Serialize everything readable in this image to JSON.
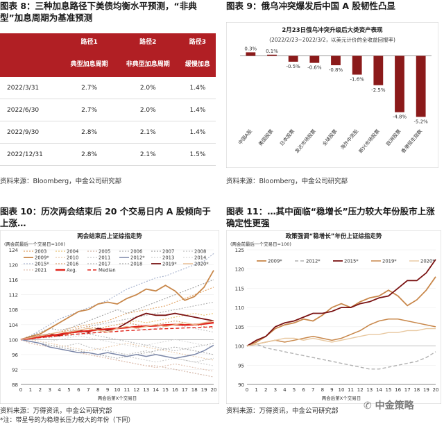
{
  "fig8": {
    "title": "图表 8：三种加息路径下美债均衡水平预测，“非典型”加息周期为基准预测",
    "headers1": [
      "",
      "路径1",
      "路径2",
      "路径3"
    ],
    "headers2": [
      "",
      "典型加息周期",
      "非典型加息周期",
      "缓慢加息"
    ],
    "rows": [
      [
        "2022/3/31",
        "2.7%",
        "2.0%",
        "1.4%"
      ],
      [
        "2022/6/30",
        "2.7%",
        "2.0%",
        "1.4%"
      ],
      [
        "2022/9/30",
        "2.8%",
        "2.1%",
        "1.4%"
      ],
      [
        "2022/12/31",
        "2.8%",
        "2.1%",
        "1.5%"
      ]
    ],
    "source": "资料来源：Bloomberg，中金公司研究部"
  },
  "fig9": {
    "title": "图表 9：俄乌冲突爆发后中国 A 股韧性凸显",
    "source": "资料来源：Bloomberg，中金公司研究部",
    "chart_data": {
      "type": "bar",
      "title": "2月23日俄乌冲突升级后大类资产表现",
      "subtitle": "(2022/2/23~2022/3/2，以美元计价的全收益回报率)",
      "categories": [
        "中国A股",
        "美国股票",
        "日本股票",
        "发达市场股票",
        "全球股票",
        "海外中资股",
        "新兴市场股票",
        "欧洲股票",
        "香港恒生指数"
      ],
      "values": [
        0.3,
        0.1,
        -0.5,
        -0.6,
        -0.8,
        -1.6,
        -2.5,
        -4.8,
        -5.2
      ],
      "value_labels": [
        "0.3%",
        "0.1%",
        "-0.5%",
        "-0.6%",
        "-0.8%",
        "-1.6%",
        "-2.5%",
        "-4.8%",
        "-5.2%"
      ],
      "ylim": [
        -6,
        0.5
      ],
      "color": "#8b1a1a"
    }
  },
  "fig10": {
    "title": "图表 10：历次两会结束后 20 个交易日内 A 股倾向于上涨…",
    "source": "资料来源：万得资讯，中金公司研究部",
    "note": "*注：带星号的为稳增长压力较大的年份（下同）",
    "chart_data": {
      "type": "line",
      "title": "两会结束后上证综指走势",
      "ylabel": "(两会前最后一个交易日=100)",
      "xlabel": "两会后第X个交易日",
      "ylim": [
        88,
        124
      ],
      "yticks": [
        88,
        92,
        96,
        100,
        104,
        108,
        112,
        116,
        120,
        124
      ],
      "x": [
        0,
        1,
        2,
        3,
        4,
        5,
        6,
        7,
        8,
        9,
        10,
        11,
        12,
        13,
        14,
        15,
        16,
        17,
        18,
        19,
        20
      ],
      "legend": [
        "2003",
        "2004",
        "2005",
        "2006",
        "2007",
        "2008",
        "2009*",
        "2010",
        "2011",
        "2012*",
        "2013",
        "2014",
        "2015*",
        "2016",
        "2017",
        "2018",
        "2019*",
        "2020*",
        "2021",
        "Avg.",
        "Median"
      ],
      "series": [
        {
          "name": "2009*",
          "color": "#c8874a",
          "dash": "",
          "width": 1.8,
          "values": [
            100,
            100.8,
            101.5,
            103,
            104.5,
            106,
            107.5,
            108,
            109.5,
            110,
            109.5,
            111,
            112,
            113.5,
            113,
            114.5,
            113,
            110.5,
            111.5,
            114,
            118.5
          ]
        },
        {
          "name": "2019*",
          "color": "#7a1212",
          "dash": "",
          "width": 1.8,
          "values": [
            100,
            100.5,
            101,
            101.5,
            101,
            102,
            102.5,
            102,
            103,
            102.5,
            103,
            104.5,
            106,
            107,
            106.5,
            106.5,
            107,
            106.5,
            106,
            105.5,
            105
          ]
        },
        {
          "name": "Avg.",
          "color": "#e0241b",
          "dash": "",
          "width": 2.4,
          "values": [
            100,
            100.3,
            100.7,
            101,
            101.4,
            101.8,
            102.1,
            102.3,
            102.6,
            102.8,
            103,
            103.2,
            103.4,
            103.6,
            103.7,
            103.9,
            104,
            103.9,
            104,
            104.2,
            104.5
          ]
        },
        {
          "name": "Median",
          "color": "#e0241b",
          "dash": "5,3",
          "width": 1.4,
          "values": [
            100,
            100.2,
            100.5,
            100.8,
            101,
            101.3,
            101.5,
            101.7,
            101.9,
            102,
            102.2,
            102.4,
            102.5,
            102.7,
            102.8,
            102.9,
            103,
            103.1,
            103.2,
            103.3,
            103.5
          ]
        },
        {
          "name": "2012*",
          "color": "#7a86a8",
          "dash": "",
          "width": 1.5,
          "values": [
            100,
            99.5,
            99,
            98,
            97.5,
            97,
            96.5,
            96.5,
            96,
            96.5,
            96,
            95.5,
            96,
            95.5,
            96,
            95.5,
            95,
            95.5,
            96,
            97,
            98.5
          ]
        },
        {
          "name": "2020*",
          "color": "#e8b98c",
          "dash": "",
          "width": 1.4,
          "values": [
            100,
            100.5,
            101,
            101.5,
            102,
            102,
            102.5,
            103,
            102.5,
            102,
            103,
            103.5,
            103,
            103.5,
            104,
            103.5,
            104,
            104.5,
            104,
            104.5,
            105
          ]
        },
        {
          "name": "2015*",
          "color": "#aab5cf",
          "dash": "2,2",
          "width": 1.2,
          "values": [
            100,
            101,
            102.5,
            104,
            105.5,
            106.5,
            107.5,
            108.5,
            109.5,
            110.5,
            112,
            113.5,
            114.5,
            115.5,
            116.5,
            117,
            118,
            119,
            120,
            121,
            123
          ]
        },
        {
          "name": "2003",
          "color": "#e0a060",
          "dash": "2,2",
          "width": 1.1,
          "values": [
            100,
            100.5,
            101,
            101.5,
            102,
            103,
            103.5,
            104,
            104.5,
            105,
            106,
            107,
            107.5,
            108,
            108.5,
            109,
            110,
            111,
            112,
            113,
            114
          ]
        },
        {
          "name": "2005",
          "color": "#d0b0a0",
          "dash": "2,2",
          "width": 1.1,
          "values": [
            100,
            99,
            98.5,
            98,
            97.5,
            97,
            96.5,
            96,
            95.5,
            95,
            94.5,
            94,
            93.5,
            93,
            93,
            92.5,
            92,
            91.5,
            91,
            90.5,
            90
          ]
        },
        {
          "name": "2008",
          "color": "#c0c0c0",
          "dash": "2,2",
          "width": 1.1,
          "values": [
            100,
            99.5,
            99,
            98.5,
            98,
            98.5,
            99,
            98,
            97.5,
            97,
            96.5,
            96,
            96.5,
            97,
            96,
            95.5,
            95,
            94.5,
            94,
            94.5,
            95
          ]
        },
        {
          "name": "2004",
          "color": "#e8c070",
          "dash": "2,2",
          "width": 1.1,
          "values": [
            100,
            100.5,
            101,
            101.5,
            101,
            101.5,
            102,
            102.5,
            103,
            103.5,
            104,
            104.5,
            105,
            104.5,
            105,
            105.5,
            106,
            106.5,
            107,
            106.5,
            107
          ]
        },
        {
          "name": "2006",
          "color": "#b0b0b0",
          "dash": "2,2",
          "width": 1.1,
          "values": [
            100,
            100.5,
            101,
            101.5,
            102,
            102.5,
            103,
            103.5,
            104,
            104.5,
            105,
            105.5,
            106,
            106.5,
            107,
            107.5,
            108,
            108.5,
            109,
            109.5,
            110
          ]
        },
        {
          "name": "2007",
          "color": "#a0a0a0",
          "dash": "2,2",
          "width": 1.1,
          "values": [
            100,
            101,
            102,
            103,
            102.5,
            103,
            104,
            105,
            106,
            107,
            108,
            107,
            108,
            109,
            110,
            111,
            112,
            113,
            114,
            115,
            116
          ]
        },
        {
          "name": "2010",
          "color": "#e8c8a8",
          "dash": "2,2",
          "width": 1.1,
          "values": [
            100,
            100,
            99.5,
            99,
            98.5,
            98,
            97.5,
            97,
            97.5,
            98,
            98.5,
            99,
            98.5,
            98,
            97.5,
            97,
            96.5,
            96,
            95.5,
            95,
            94.5
          ]
        },
        {
          "name": "2011",
          "color": "#c8c8c8",
          "dash": "2,2",
          "width": 1.1,
          "values": [
            100,
            100.5,
            101,
            101.5,
            102,
            102.5,
            102,
            101.5,
            102,
            102.5,
            103,
            103.5,
            103,
            102.5,
            103,
            103.5,
            104,
            103.5,
            103,
            102.5,
            102
          ]
        },
        {
          "name": "2013",
          "color": "#cfcfcf",
          "dash": "2,2",
          "width": 1.1,
          "values": [
            100,
            99.5,
            99,
            98.5,
            98,
            97.5,
            97,
            96.5,
            96,
            96.5,
            96,
            95.5,
            95,
            94.5,
            94,
            94.5,
            95,
            94.5,
            94,
            93.5,
            93
          ]
        },
        {
          "name": "2014",
          "color": "#d8d8d8",
          "dash": "2,2",
          "width": 1.1,
          "values": [
            100,
            99.5,
            99,
            99.5,
            100,
            100.5,
            101,
            100.5,
            100,
            99.5,
            99,
            98.5,
            98,
            98.5,
            99,
            99.5,
            100,
            99.5,
            99,
            98.5,
            98
          ]
        },
        {
          "name": "2016",
          "color": "#d8a070",
          "dash": "2,2",
          "width": 1.1,
          "values": [
            100,
            100.5,
            101,
            101.5,
            102,
            102.5,
            103,
            103.5,
            103,
            103.5,
            104,
            104.5,
            104,
            103.5,
            104,
            104.5,
            105,
            104.5,
            104,
            103.5,
            103
          ]
        },
        {
          "name": "2017",
          "color": "#b8b8b8",
          "dash": "2,2",
          "width": 1.1,
          "values": [
            100,
            100,
            100.5,
            100.5,
            101,
            101,
            101.5,
            101.5,
            101,
            100.5,
            100,
            99.5,
            99,
            98.5,
            98,
            97.5,
            97,
            97.5,
            98,
            98.5,
            99
          ]
        },
        {
          "name": "2018",
          "color": "#a8a8a8",
          "dash": "2,2",
          "width": 1.1,
          "values": [
            100,
            99.5,
            99,
            98.5,
            98,
            97.5,
            97,
            96.5,
            96,
            95.5,
            95,
            95.5,
            96,
            96.5,
            97,
            97.5,
            98,
            97.5,
            97,
            96.5,
            96
          ]
        },
        {
          "name": "2021",
          "color": "#e0c0b0",
          "dash": "2,2",
          "width": 1.1,
          "values": [
            100,
            99,
            98.5,
            98,
            97.5,
            97,
            96.5,
            96,
            95.5,
            95,
            94.5,
            94,
            93.5,
            93,
            92.5,
            93,
            93.5,
            93,
            92.5,
            92,
            91.5
          ]
        }
      ]
    }
  },
  "fig11": {
    "title": "图表 11：…其中面临“稳增长”压力较大年份股市上涨确定性更强",
    "source": "资料来源：万得资讯，中金公司研究部",
    "logo": "中金策略",
    "chart_data": {
      "type": "line",
      "title": "政策强调“稳增长”年份上证综指走势",
      "ylabel": "(两会前最后一个交易日=100)",
      "xlabel": "两会后第X个交易日",
      "ylim": [
        90,
        125
      ],
      "yticks": [
        90,
        95,
        100,
        105,
        110,
        115,
        120,
        125
      ],
      "x": [
        0,
        1,
        2,
        3,
        4,
        5,
        6,
        7,
        8,
        9,
        10,
        11,
        12,
        13,
        14,
        15,
        16,
        17,
        18,
        19,
        20
      ],
      "legend": [
        "2009*",
        "2012*",
        "2015*",
        "2019*",
        "2020*"
      ],
      "series": [
        {
          "name": "2009*",
          "color": "#c8874a",
          "dash": "",
          "width": 1.8,
          "values": [
            100,
            101,
            102.5,
            104.5,
            105.5,
            106,
            107,
            106.5,
            108,
            110,
            111,
            110,
            111.5,
            112.5,
            113,
            114.5,
            113,
            110.5,
            112,
            114.5,
            118
          ]
        },
        {
          "name": "2012*",
          "color": "#b0b0b0",
          "dash": "5,3",
          "width": 1.4,
          "values": [
            100,
            100.5,
            99.5,
            99,
            98.5,
            98,
            97.5,
            97,
            96.5,
            96,
            95.5,
            95,
            94.5,
            94,
            94,
            94.5,
            95,
            95.5,
            96,
            97,
            98.5
          ]
        },
        {
          "name": "2015*",
          "color": "#7a1212",
          "dash": "",
          "width": 1.8,
          "values": [
            100,
            101.5,
            102.5,
            105,
            106,
            106.5,
            107.5,
            108.5,
            108.5,
            109,
            110,
            110,
            111,
            111.5,
            112.5,
            113,
            115,
            117,
            117,
            119,
            122.5
          ]
        },
        {
          "name": "2019*",
          "color": "#c8874a",
          "dash": "",
          "width": 1.5,
          "values": [
            100,
            100.5,
            101,
            101.5,
            101,
            101.5,
            102,
            102.5,
            102,
            101.5,
            102,
            103,
            104,
            105.5,
            106.5,
            107,
            107,
            106.5,
            106,
            105.5,
            105
          ]
        },
        {
          "name": "2020*",
          "color": "#e8c8a0",
          "dash": "",
          "width": 1.4,
          "values": [
            100,
            100.5,
            101,
            101.5,
            102,
            102,
            101.5,
            102,
            101.5,
            101,
            101.5,
            102,
            102.5,
            103,
            103,
            103.5,
            103.5,
            104,
            104,
            104.5,
            104.5
          ]
        }
      ]
    }
  }
}
